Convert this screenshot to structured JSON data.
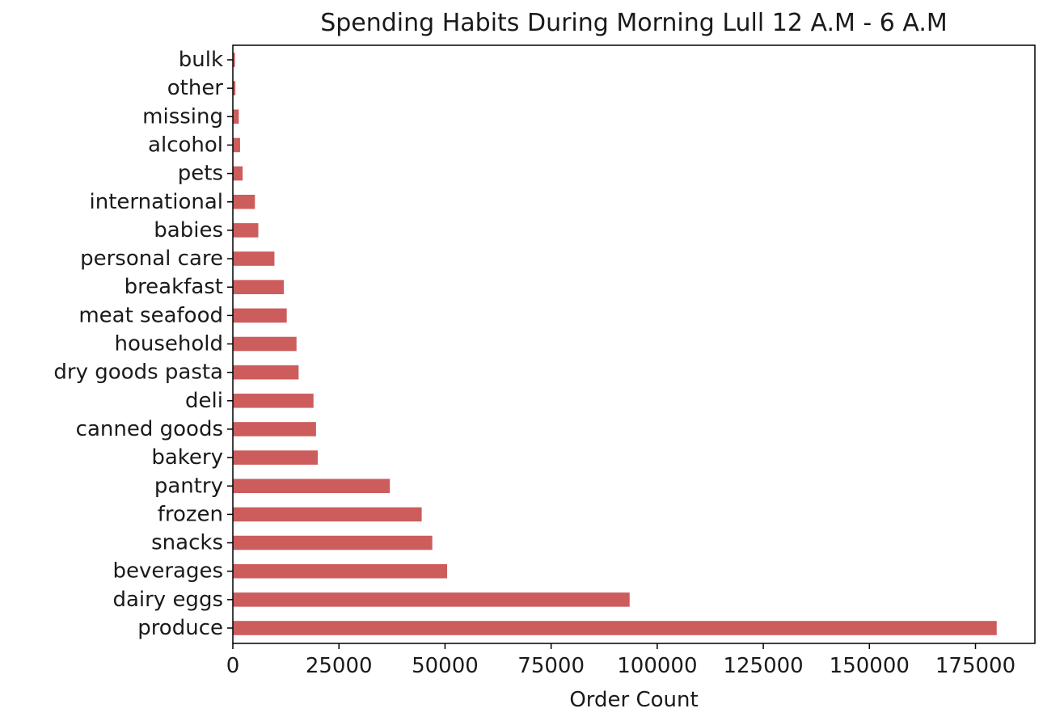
{
  "chart_data": {
    "type": "bar",
    "orientation": "horizontal",
    "title": "Spending Habits During Morning Lull 12 A.M - 6 A.M",
    "xlabel": "Order Count",
    "ylabel": "",
    "xlim": [
      0,
      189000
    ],
    "xticks": [
      0,
      25000,
      50000,
      75000,
      100000,
      125000,
      150000,
      175000
    ],
    "grid": false,
    "legend": "none",
    "bar_color": "#cd5c5c",
    "categories": [
      "produce",
      "dairy eggs",
      "beverages",
      "snacks",
      "frozen",
      "pantry",
      "bakery",
      "canned goods",
      "deli",
      "dry goods pasta",
      "household",
      "meat seafood",
      "breakfast",
      "personal care",
      "babies",
      "international",
      "pets",
      "alcohol",
      "missing",
      "other",
      "bulk"
    ],
    "values": [
      180000,
      93500,
      50500,
      47000,
      44500,
      37000,
      20000,
      19600,
      19000,
      15500,
      15000,
      12700,
      12000,
      9800,
      6000,
      5200,
      2300,
      1700,
      1400,
      600,
      500
    ]
  }
}
